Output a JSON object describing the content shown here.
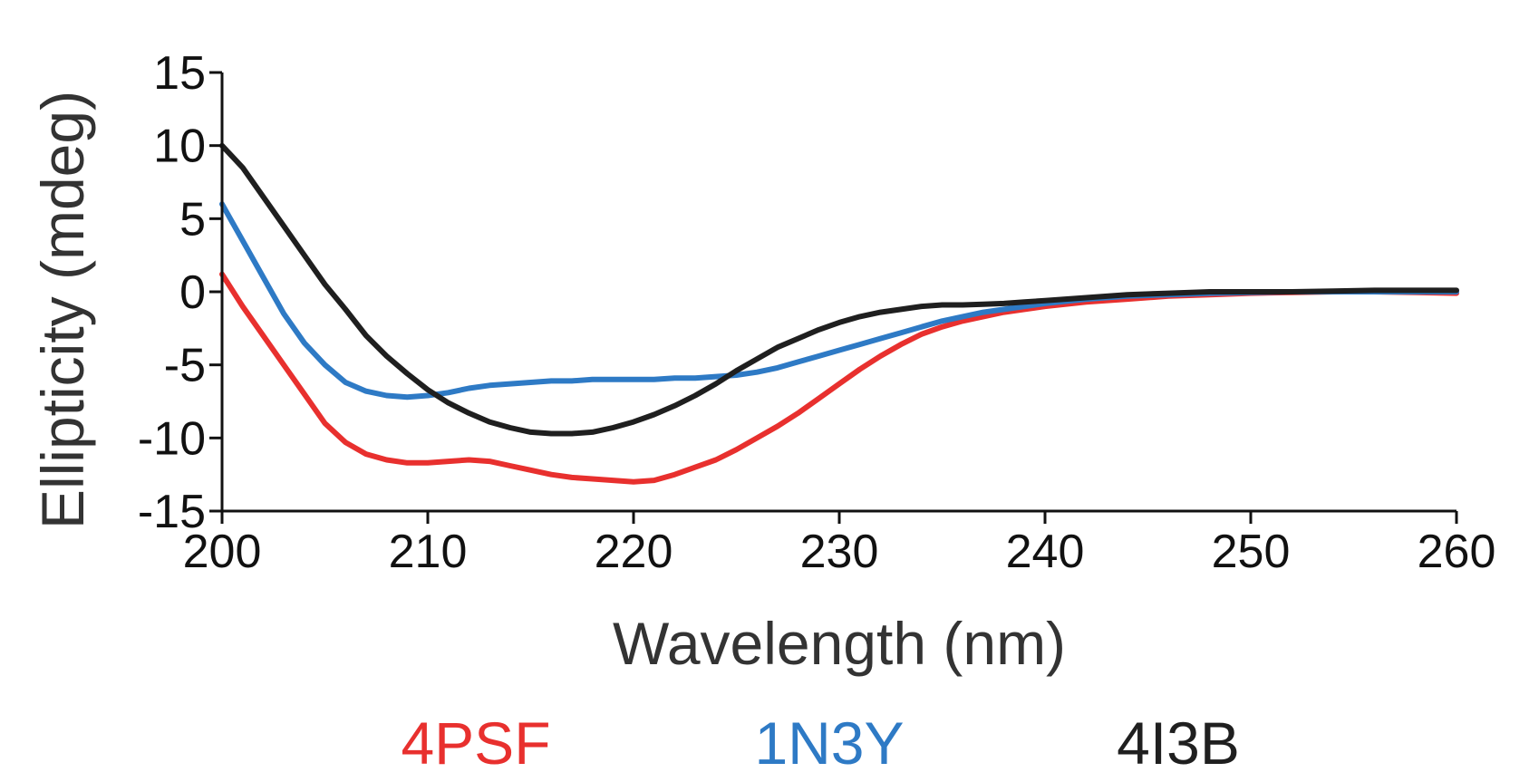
{
  "chart_data": {
    "type": "line",
    "title": "",
    "xlabel": "Wavelength (nm)",
    "ylabel": "Ellipticity (mdeg)",
    "xlim": [
      200,
      260
    ],
    "ylim": [
      -15,
      15
    ],
    "xticks": [
      200,
      210,
      220,
      230,
      240,
      250,
      260
    ],
    "xtick_labels": [
      "200",
      "210",
      "220",
      "230",
      "240",
      "250",
      "260"
    ],
    "yticks": [
      15,
      10,
      5,
      0,
      -5,
      -10,
      -15
    ],
    "ytick_labels": [
      "15",
      "10",
      "5",
      "0",
      "-5",
      "-10",
      "-15"
    ],
    "grid": false,
    "legend_position": "bottom",
    "series": [
      {
        "name": "4PSF",
        "color": "#e8302e",
        "x": [
          200,
          201,
          202,
          203,
          204,
          205,
          206,
          207,
          208,
          209,
          210,
          211,
          212,
          213,
          214,
          215,
          216,
          217,
          218,
          219,
          220,
          221,
          222,
          223,
          224,
          225,
          226,
          227,
          228,
          229,
          230,
          231,
          232,
          233,
          234,
          235,
          236,
          237,
          238,
          239,
          240,
          242,
          244,
          246,
          248,
          250,
          252,
          254,
          256,
          258,
          260
        ],
        "y": [
          1.2,
          -1.0,
          -3.0,
          -5.0,
          -7.0,
          -9.0,
          -10.3,
          -11.1,
          -11.5,
          -11.7,
          -11.7,
          -11.6,
          -11.5,
          -11.6,
          -11.9,
          -12.2,
          -12.5,
          -12.7,
          -12.8,
          -12.9,
          -13.0,
          -12.9,
          -12.5,
          -12.0,
          -11.5,
          -10.8,
          -10.0,
          -9.2,
          -8.3,
          -7.3,
          -6.3,
          -5.3,
          -4.4,
          -3.6,
          -2.9,
          -2.4,
          -2.0,
          -1.7,
          -1.4,
          -1.2,
          -1.0,
          -0.7,
          -0.5,
          -0.3,
          -0.2,
          -0.1,
          -0.05,
          0.0,
          0.0,
          -0.05,
          -0.1
        ]
      },
      {
        "name": "1N3Y",
        "color": "#2e7ac5",
        "x": [
          200,
          201,
          202,
          203,
          204,
          205,
          206,
          207,
          208,
          209,
          210,
          211,
          212,
          213,
          214,
          215,
          216,
          217,
          218,
          219,
          220,
          221,
          222,
          223,
          224,
          225,
          226,
          227,
          228,
          229,
          230,
          231,
          232,
          233,
          234,
          235,
          236,
          237,
          238,
          239,
          240,
          242,
          244,
          246,
          248,
          250,
          252,
          254,
          256,
          258,
          260
        ],
        "y": [
          6.0,
          3.5,
          1.0,
          -1.5,
          -3.5,
          -5.0,
          -6.2,
          -6.8,
          -7.1,
          -7.2,
          -7.1,
          -6.9,
          -6.6,
          -6.4,
          -6.3,
          -6.2,
          -6.1,
          -6.1,
          -6.0,
          -6.0,
          -6.0,
          -6.0,
          -5.9,
          -5.9,
          -5.8,
          -5.7,
          -5.5,
          -5.2,
          -4.8,
          -4.4,
          -4.0,
          -3.6,
          -3.2,
          -2.8,
          -2.4,
          -2.0,
          -1.7,
          -1.4,
          -1.2,
          -1.0,
          -0.8,
          -0.5,
          -0.3,
          -0.2,
          -0.1,
          -0.05,
          0.0,
          0.0,
          0.0,
          0.0,
          0.0
        ]
      },
      {
        "name": "4I3B",
        "color": "#1f1f1f",
        "x": [
          200,
          201,
          202,
          203,
          204,
          205,
          206,
          207,
          208,
          209,
          210,
          211,
          212,
          213,
          214,
          215,
          216,
          217,
          218,
          219,
          220,
          221,
          222,
          223,
          224,
          225,
          226,
          227,
          228,
          229,
          230,
          231,
          232,
          233,
          234,
          235,
          236,
          237,
          238,
          239,
          240,
          242,
          244,
          246,
          248,
          250,
          252,
          254,
          256,
          258,
          260
        ],
        "y": [
          10.0,
          8.5,
          6.5,
          4.5,
          2.5,
          0.5,
          -1.2,
          -3.0,
          -4.4,
          -5.6,
          -6.7,
          -7.6,
          -8.3,
          -8.9,
          -9.3,
          -9.6,
          -9.7,
          -9.7,
          -9.6,
          -9.3,
          -8.9,
          -8.4,
          -7.8,
          -7.1,
          -6.3,
          -5.4,
          -4.6,
          -3.8,
          -3.2,
          -2.6,
          -2.1,
          -1.7,
          -1.4,
          -1.2,
          -1.0,
          -0.9,
          -0.9,
          -0.85,
          -0.8,
          -0.7,
          -0.6,
          -0.4,
          -0.2,
          -0.1,
          0.0,
          0.0,
          0.0,
          0.05,
          0.1,
          0.1,
          0.1
        ]
      }
    ]
  }
}
